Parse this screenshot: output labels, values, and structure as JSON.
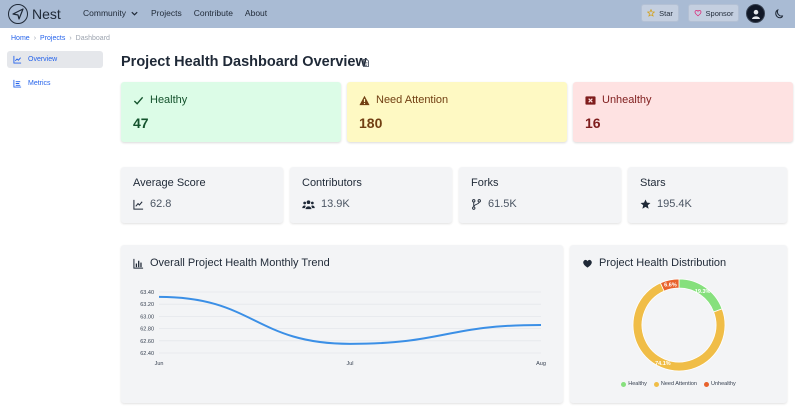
{
  "app": {
    "name": "Nest"
  },
  "nav": [
    {
      "label": "Community",
      "has_dropdown": true
    },
    {
      "label": "Projects"
    },
    {
      "label": "Contribute"
    },
    {
      "label": "About"
    }
  ],
  "header_buttons": {
    "star": "Star",
    "sponsor": "Sponsor"
  },
  "breadcrumb": [
    "Home",
    "Projects",
    "Dashboard"
  ],
  "sidebar": [
    {
      "label": "Overview",
      "active": true,
      "icon": "chart-line-icon"
    },
    {
      "label": "Metrics",
      "active": false,
      "icon": "list-icon"
    }
  ],
  "page_title": "Project Health Dashboard Overview",
  "status_cards": [
    {
      "label": "Healthy",
      "value": "47",
      "icon": "check-icon"
    },
    {
      "label": "Need Attention",
      "value": "180",
      "icon": "warning-icon"
    },
    {
      "label": "Unhealthy",
      "value": "16",
      "icon": "x-square-icon"
    }
  ],
  "stat_cards": [
    {
      "label": "Average Score",
      "value": "62.8",
      "icon": "trend-icon"
    },
    {
      "label": "Contributors",
      "value": "13.9K",
      "icon": "users-icon"
    },
    {
      "label": "Forks",
      "value": "61.5K",
      "icon": "fork-icon"
    },
    {
      "label": "Stars",
      "value": "195.4K",
      "icon": "star-icon"
    }
  ],
  "colors": {
    "healthy": "#86e07d",
    "attention": "#f0bd47",
    "unhealthy": "#e8622c",
    "line": "#3b8fe6"
  },
  "chart_data": [
    {
      "type": "line",
      "title": "Overall Project Health Monthly Trend",
      "categories": [
        "Jun",
        "Jul",
        "Aug"
      ],
      "x": [
        0,
        1,
        2
      ],
      "values": [
        63.32,
        62.55,
        62.86
      ],
      "ylim": [
        62.4,
        63.4
      ],
      "yticks": [
        "63.40",
        "63.20",
        "63.00",
        "62.80",
        "62.60",
        "62.40"
      ],
      "ytick_values": [
        63.4,
        63.2,
        63.0,
        62.8,
        62.6,
        62.4
      ],
      "grid": true
    },
    {
      "type": "pie",
      "title": "Project Health Distribution",
      "categories": [
        "Healthy",
        "Need Attention",
        "Unhealthy"
      ],
      "values": [
        19.3,
        74.1,
        6.6
      ],
      "labels": [
        "19.3%",
        "74.1%",
        "6.6%"
      ],
      "legend": "bottom"
    }
  ]
}
